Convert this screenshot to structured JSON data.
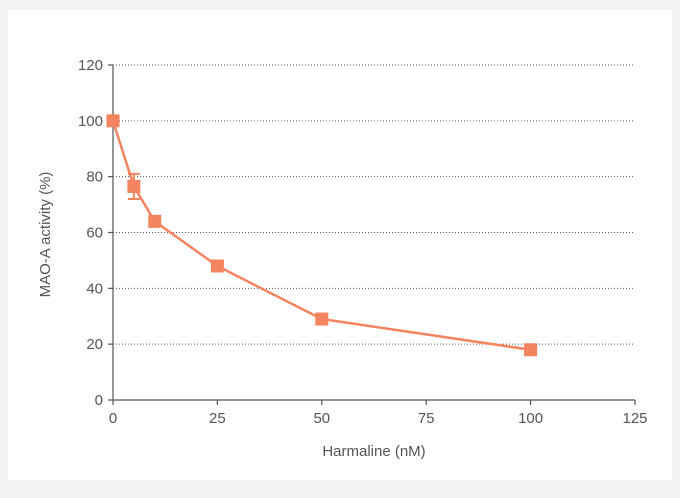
{
  "chart_data": {
    "type": "line",
    "title": "",
    "xlabel": "Harmaline (nM)",
    "ylabel": "MAO-A activity (%)",
    "xlim": [
      0,
      125
    ],
    "ylim": [
      0,
      120
    ],
    "xticks": [
      0,
      25,
      50,
      75,
      100,
      125
    ],
    "yticks": [
      0,
      20,
      40,
      60,
      80,
      100,
      120
    ],
    "grid": "horizontal dotted",
    "legend": "none",
    "series": [
      {
        "color": "#f4845f",
        "marker": "square",
        "x": [
          0,
          5,
          10,
          25,
          50,
          100
        ],
        "y": [
          100,
          76.5,
          64,
          48,
          29,
          18
        ],
        "error": [
          0,
          4.5,
          0,
          0,
          0,
          0
        ]
      }
    ]
  }
}
